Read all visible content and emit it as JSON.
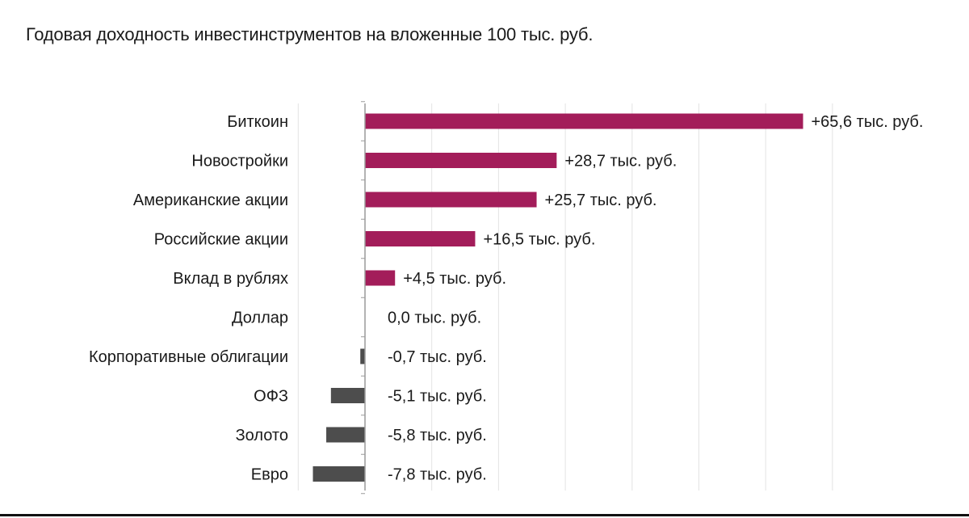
{
  "chart_data": {
    "type": "bar",
    "orientation": "horizontal",
    "title": "Годовая доходность инвестинструментов на вложенные 100 тыс. руб.",
    "categories": [
      "Биткоин",
      "Новостройки",
      "Американские акции",
      "Российские акции",
      "Вклад в рублях",
      "Доллар",
      "Корпоративные облигации",
      "ОФЗ",
      "Золото",
      "Евро"
    ],
    "values": [
      65.6,
      28.7,
      25.7,
      16.5,
      4.5,
      0.0,
      -0.7,
      -5.1,
      -5.8,
      -7.8
    ],
    "value_labels": [
      "+65,6 тыс. руб.",
      "+28,7 тыс. руб.",
      "+25,7 тыс. руб.",
      "+16,5 тыс. руб.",
      "+4,5 тыс. руб.",
      "0,0 тыс. руб.",
      "-0,7 тыс. руб.",
      "-5,1 тыс. руб.",
      "-5,8 тыс. руб.",
      "-7,8 тыс. руб."
    ],
    "xlim": [
      -10,
      70
    ],
    "grid": true,
    "colors": {
      "positive": "#a31d5a",
      "negative": "#4d4d4d",
      "grid": "#e3e3e3",
      "axis": "#9a9a9a"
    }
  }
}
